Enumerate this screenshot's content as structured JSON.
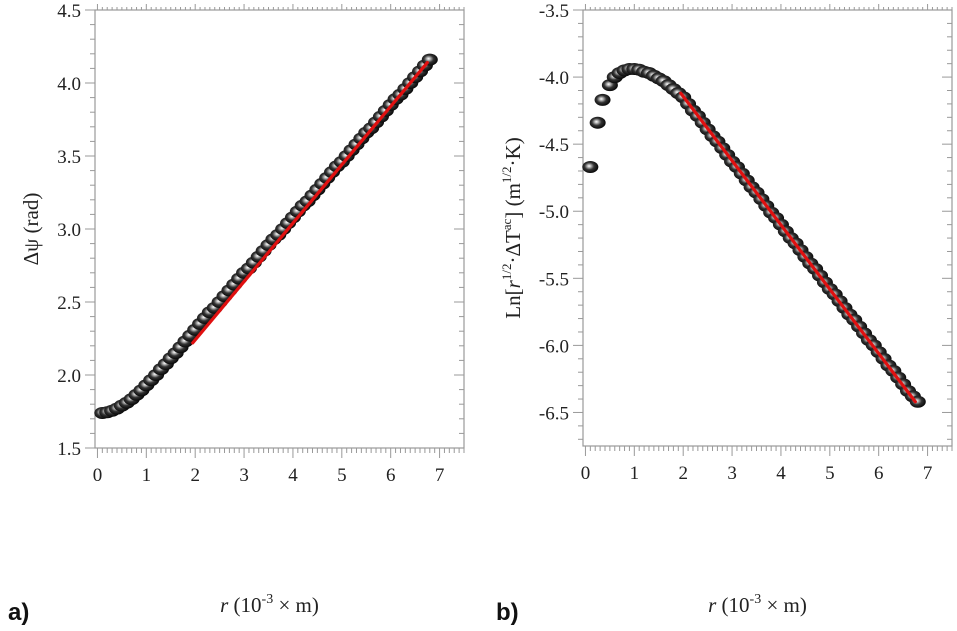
{
  "chart_data": [
    {
      "type": "scatter",
      "panel_label": "a)",
      "xlabel": {
        "italic": "r",
        "text": " (10",
        "sup": "-3",
        "rest": " × m)"
      },
      "ylabel": "Δψ (rad)",
      "xlim": [
        -0.05,
        7.5
      ],
      "ylim": [
        1.5,
        4.5
      ],
      "xticks": [
        "0",
        "1",
        "2",
        "3",
        "4",
        "5",
        "6",
        "7"
      ],
      "yticks": [
        "1.5",
        "2.0",
        "2.5",
        "3.0",
        "3.5",
        "4.0",
        "4.5"
      ],
      "grid": false,
      "marker_color": "#000000",
      "fit_color": "#e01010",
      "points": {
        "x": [
          0.1,
          0.2,
          0.3,
          0.4,
          0.5,
          0.6,
          0.7,
          0.8,
          0.9,
          1.0,
          1.1,
          1.2,
          1.3,
          1.4,
          1.5,
          1.6,
          1.7,
          1.8,
          1.9,
          2.0,
          2.1,
          2.2,
          2.3,
          2.4,
          2.5,
          2.6,
          2.7,
          2.8,
          2.9,
          3.0,
          3.1,
          3.2,
          3.3,
          3.4,
          3.5,
          3.6,
          3.7,
          3.8,
          3.9,
          4.0,
          4.1,
          4.2,
          4.3,
          4.4,
          4.5,
          4.6,
          4.7,
          4.8,
          4.9,
          5.0,
          5.1,
          5.2,
          5.3,
          5.4,
          5.5,
          5.6,
          5.7,
          5.8,
          5.9,
          6.0,
          6.1,
          6.2,
          6.3,
          6.4,
          6.5,
          6.6,
          6.7,
          6.8
        ],
        "y": [
          1.74,
          1.745,
          1.755,
          1.77,
          1.79,
          1.81,
          1.835,
          1.865,
          1.895,
          1.93,
          1.965,
          2.0,
          2.04,
          2.075,
          2.115,
          2.15,
          2.19,
          2.23,
          2.27,
          2.31,
          2.35,
          2.39,
          2.43,
          2.46,
          2.5,
          2.54,
          2.58,
          2.62,
          2.66,
          2.7,
          2.73,
          2.77,
          2.81,
          2.85,
          2.89,
          2.93,
          2.96,
          3.0,
          3.04,
          3.08,
          3.12,
          3.16,
          3.19,
          3.23,
          3.27,
          3.31,
          3.35,
          3.39,
          3.43,
          3.46,
          3.5,
          3.54,
          3.58,
          3.62,
          3.66,
          3.69,
          3.73,
          3.77,
          3.81,
          3.85,
          3.89,
          3.92,
          3.96,
          4.0,
          4.04,
          4.08,
          4.12,
          4.16
        ]
      },
      "fit_line": {
        "x": [
          1.95,
          6.75
        ],
        "y": [
          2.22,
          4.14
        ]
      }
    },
    {
      "type": "scatter",
      "panel_label": "b)",
      "xlabel": {
        "italic": "r",
        "text": " (10",
        "sup": "-3",
        "rest": " × m)"
      },
      "ylabel": {
        "pre": "Ln[",
        "italic": "r",
        "sup1": "1/2",
        "mid": "·ΔT",
        "sup2": "ac",
        "post": "] (m",
        "sup3": "1/2",
        "end": "·K)"
      },
      "xlim": [
        -0.05,
        7.5
      ],
      "ylim": [
        -6.75,
        -3.5
      ],
      "xticks": [
        "0",
        "1",
        "2",
        "3",
        "4",
        "5",
        "6",
        "7"
      ],
      "yticks": [
        "-6.5",
        "-6.0",
        "-5.5",
        "-5.0",
        "-4.5",
        "-4.0",
        "-3.5"
      ],
      "grid": false,
      "marker_color": "#000000",
      "fit_color": "#e01010",
      "points": {
        "x": [
          0.1,
          0.25,
          0.35,
          0.5,
          0.6,
          0.7,
          0.8,
          0.9,
          1.0,
          1.1,
          1.2,
          1.3,
          1.4,
          1.5,
          1.6,
          1.7,
          1.8,
          1.9,
          2.0,
          2.1,
          2.2,
          2.3,
          2.4,
          2.5,
          2.6,
          2.7,
          2.8,
          2.9,
          3.0,
          3.1,
          3.2,
          3.3,
          3.4,
          3.5,
          3.6,
          3.7,
          3.8,
          3.9,
          4.0,
          4.1,
          4.2,
          4.3,
          4.4,
          4.5,
          4.6,
          4.7,
          4.8,
          4.9,
          5.0,
          5.1,
          5.2,
          5.3,
          5.4,
          5.5,
          5.6,
          5.7,
          5.8,
          5.9,
          6.0,
          6.1,
          6.2,
          6.3,
          6.4,
          6.5,
          6.6,
          6.7,
          6.8
        ],
        "y": [
          -4.67,
          -4.34,
          -4.17,
          -4.06,
          -4.0,
          -3.97,
          -3.95,
          -3.94,
          -3.94,
          -3.945,
          -3.96,
          -3.97,
          -3.99,
          -4.01,
          -4.03,
          -4.06,
          -4.09,
          -4.12,
          -4.15,
          -4.2,
          -4.25,
          -4.29,
          -4.34,
          -4.39,
          -4.44,
          -4.48,
          -4.53,
          -4.58,
          -4.63,
          -4.67,
          -4.72,
          -4.77,
          -4.82,
          -4.86,
          -4.91,
          -4.96,
          -5.01,
          -5.05,
          -5.1,
          -5.15,
          -5.2,
          -5.24,
          -5.29,
          -5.34,
          -5.39,
          -5.43,
          -5.48,
          -5.53,
          -5.58,
          -5.62,
          -5.67,
          -5.72,
          -5.77,
          -5.81,
          -5.86,
          -5.91,
          -5.96,
          -6.0,
          -6.05,
          -6.1,
          -6.15,
          -6.19,
          -6.24,
          -6.29,
          -6.34,
          -6.38,
          -6.42
        ]
      },
      "fit_line": {
        "x": [
          1.95,
          6.75
        ],
        "y": [
          -4.12,
          -6.42
        ]
      }
    }
  ]
}
